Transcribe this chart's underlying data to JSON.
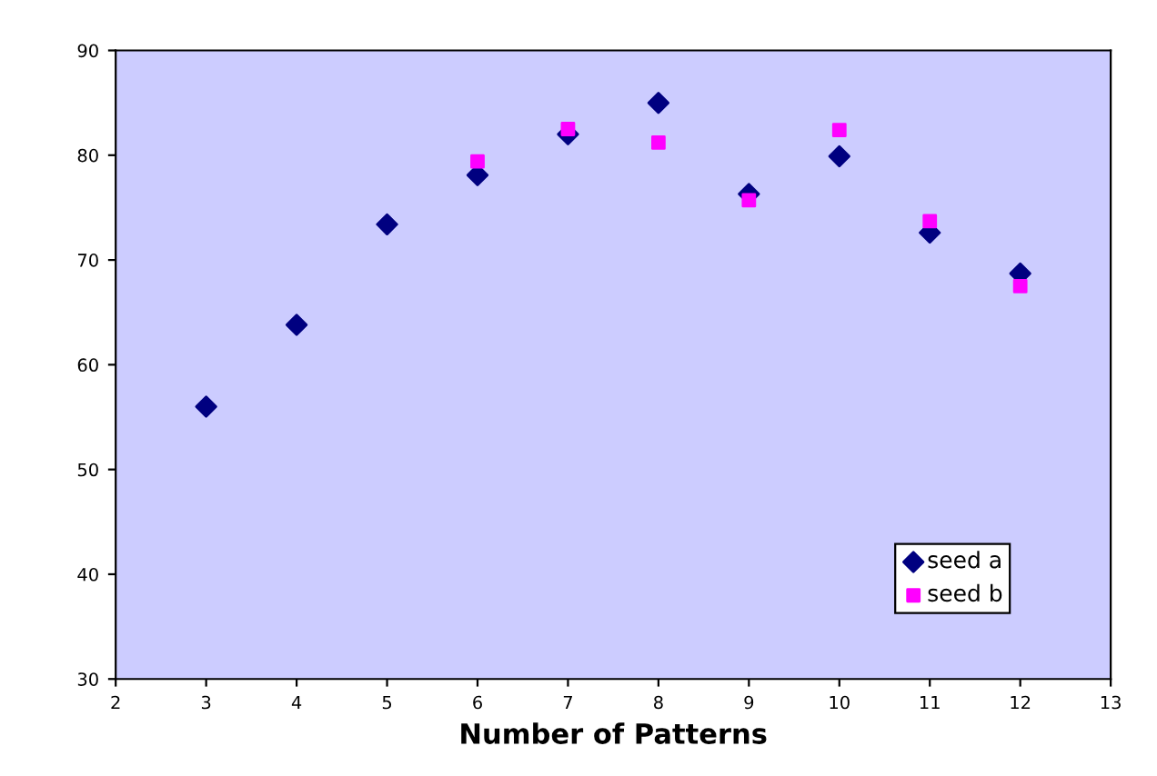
{
  "chart_data": {
    "type": "scatter",
    "xlabel": "Number of Patterns",
    "xlim": [
      2,
      13
    ],
    "xticks": [
      2,
      3,
      4,
      5,
      6,
      7,
      8,
      9,
      10,
      11,
      12,
      13
    ],
    "ylim": [
      30,
      90
    ],
    "yticks": [
      30,
      40,
      50,
      60,
      70,
      80,
      90
    ],
    "grid": false,
    "legend": "bottom right",
    "series": [
      {
        "name": "seed a",
        "color": "#000080",
        "marker": "diamond",
        "x": [
          3,
          4,
          5,
          6,
          7,
          8,
          9,
          10,
          11,
          12
        ],
        "values": [
          56.0,
          63.8,
          73.4,
          78.1,
          82.0,
          85.0,
          76.3,
          79.9,
          72.6,
          68.7
        ]
      },
      {
        "name": "seed b",
        "color": "#ff00ff",
        "marker": "square",
        "x": [
          6,
          7,
          8,
          9,
          10,
          11,
          12
        ],
        "values": [
          79.4,
          82.5,
          81.2,
          75.7,
          82.4,
          73.7,
          67.5
        ]
      }
    ]
  }
}
